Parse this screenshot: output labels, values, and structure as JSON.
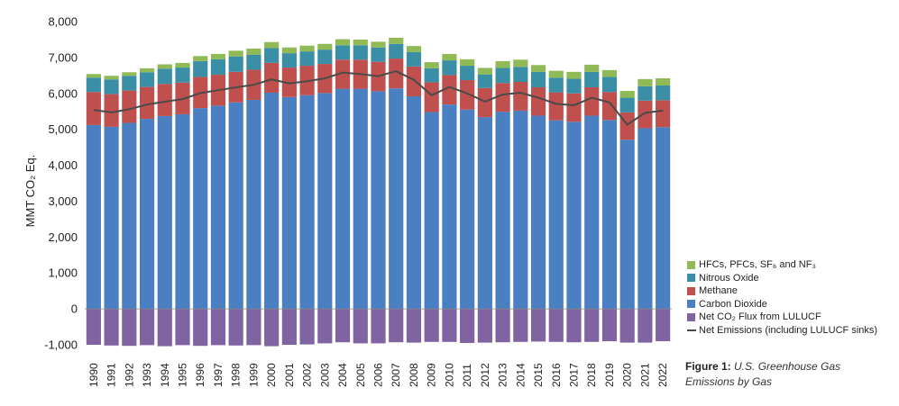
{
  "chart_data": {
    "type": "bar",
    "stacked": true,
    "ylabel": "MMT CO₂ Eq.",
    "xlabel": "",
    "ylim": [
      -1000,
      8000
    ],
    "yticks": [
      -1000,
      0,
      1000,
      2000,
      3000,
      4000,
      5000,
      6000,
      7000,
      8000
    ],
    "ytick_labels": [
      "-1,000",
      "0",
      "1,000",
      "2,000",
      "3,000",
      "4,000",
      "5,000",
      "6,000",
      "7,000",
      "8,000"
    ],
    "grid": false,
    "legend_position": "bottom-right",
    "categories": [
      "1990",
      "1991",
      "1992",
      "1993",
      "1994",
      "1995",
      "1996",
      "1997",
      "1998",
      "1999",
      "2000",
      "2001",
      "2002",
      "2003",
      "2004",
      "2005",
      "2006",
      "2007",
      "2008",
      "2009",
      "2010",
      "2011",
      "2012",
      "2013",
      "2014",
      "2015",
      "2016",
      "2017",
      "2018",
      "2019",
      "2020",
      "2021",
      "2022"
    ],
    "series": [
      {
        "name": "HFCs, PFCs, SF₆ and NF₃",
        "color": "#8fba56",
        "values": [
          100,
          100,
          100,
          110,
          120,
          130,
          140,
          150,
          160,
          170,
          170,
          160,
          160,
          160,
          170,
          160,
          160,
          170,
          170,
          170,
          180,
          180,
          180,
          190,
          200,
          190,
          190,
          190,
          200,
          190,
          190,
          200,
          200
        ]
      },
      {
        "name": "Nitrous Oxide",
        "color": "#3a8fa6",
        "values": [
          400,
          410,
          410,
          410,
          430,
          420,
          440,
          430,
          430,
          420,
          410,
          400,
          400,
          400,
          400,
          400,
          400,
          410,
          400,
          390,
          410,
          400,
          380,
          420,
          420,
          430,
          410,
          410,
          430,
          420,
          410,
          400,
          410
        ]
      },
      {
        "name": "Methane",
        "color": "#c0504d",
        "values": [
          920,
          910,
          900,
          890,
          890,
          880,
          870,
          860,
          850,
          840,
          830,
          820,
          820,
          810,
          810,
          810,
          820,
          830,
          830,
          830,
          820,
          820,
          810,
          800,
          800,
          790,
          780,
          790,
          790,
          780,
          760,
          770,
          750
        ]
      },
      {
        "name": "Carbon Dioxide",
        "color": "#4a7fc1",
        "values": [
          5120,
          5070,
          5180,
          5290,
          5370,
          5420,
          5590,
          5660,
          5750,
          5820,
          6020,
          5900,
          5950,
          6010,
          6130,
          6130,
          6060,
          6140,
          5920,
          5480,
          5690,
          5550,
          5340,
          5490,
          5520,
          5380,
          5250,
          5210,
          5380,
          5260,
          4710,
          5030,
          5060
        ]
      },
      {
        "name": "Net CO₂ Flux from LULUCF",
        "color": "#8064a2",
        "values": [
          -1000,
          -1020,
          -1030,
          -1010,
          -1040,
          -1010,
          -1030,
          -1010,
          -1020,
          -1010,
          -1040,
          -1000,
          -990,
          -960,
          -930,
          -960,
          -960,
          -930,
          -940,
          -920,
          -920,
          -950,
          -940,
          -930,
          -920,
          -910,
          -920,
          -930,
          -920,
          -900,
          -940,
          -940,
          -900
        ]
      }
    ],
    "line": {
      "name": "Net Emissions (including LULUCF sinks)",
      "color": "#4a4a4a",
      "values": [
        5540,
        5470,
        5560,
        5690,
        5770,
        5840,
        6010,
        6090,
        6170,
        6240,
        6390,
        6280,
        6340,
        6420,
        6580,
        6540,
        6480,
        6620,
        6380,
        5950,
        6180,
        6000,
        5770,
        5970,
        6020,
        5880,
        5710,
        5670,
        5880,
        5750,
        5130,
        5460,
        5520
      ]
    },
    "legend": [
      {
        "label": "HFCs, PFCs, SF₆ and NF₃",
        "color": "#8fba56"
      },
      {
        "label": "Nitrous Oxide",
        "color": "#3a8fa6"
      },
      {
        "label": "Methane",
        "color": "#c0504d"
      },
      {
        "label": "Carbon Dioxide",
        "color": "#4a7fc1"
      },
      {
        "label": "Net CO₂ Flux from LULUCF",
        "color": "#8064a2"
      },
      {
        "label": "Net Emissions (including LULUCF sinks)",
        "color": "#4a4a4a"
      }
    ]
  },
  "caption": {
    "figure_label": "Figure 1:",
    "text": "U.S. Greenhouse Gas Emissions by Gas"
  }
}
